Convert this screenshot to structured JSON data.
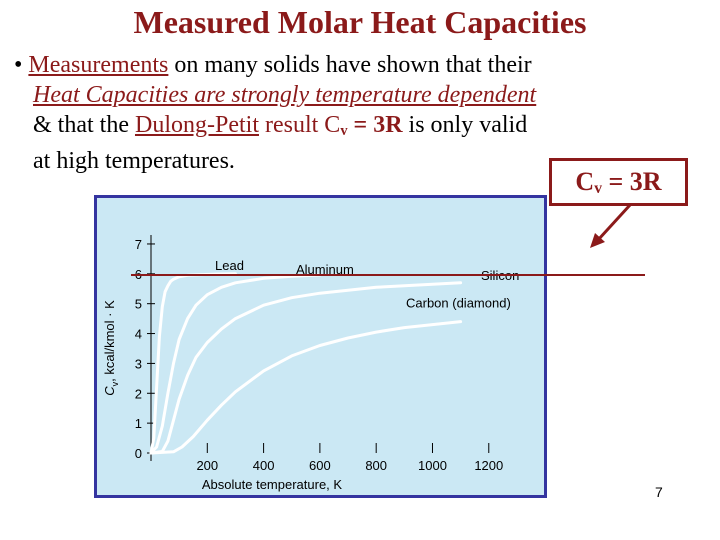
{
  "slide": {
    "title": "Measured Molar Heat Capacities",
    "bullet": "•",
    "l1_a": "Measurements",
    "l1_b": " on many solids have shown that their",
    "l2": "Heat Capacities are strongly temperature dependent",
    "l3_a": "& that the ",
    "l3_b": "Dulong-Petit",
    "l3_c": " result C",
    "l3_sub": "v",
    "l3_d": " = 3R",
    "l3_e": " is only valid",
    "l4": "at high temperatures.",
    "callout_c": "C",
    "callout_sub": "v",
    "callout_rest": " = 3R",
    "page_number": "7"
  },
  "colors": {
    "title": "#8b1a1a",
    "plot_bg": "#cbe8f4",
    "plot_border": "#3434a0",
    "curve": "#ffffff",
    "reference_line": "#8b1a1a"
  },
  "chart_data": {
    "type": "line",
    "xlabel": "Absolute temperature, K",
    "ylabel_c": "C",
    "ylabel_sub": "v",
    "ylabel_rest": ", kcal/kmol · K",
    "xticks": [
      "200",
      "400",
      "600",
      "800",
      "1000",
      "1200"
    ],
    "yticks": [
      "0",
      "1",
      "2",
      "3",
      "4",
      "5",
      "6",
      "7"
    ],
    "xlim": [
      0,
      1350
    ],
    "ylim": [
      0,
      7.3
    ],
    "reference_line": {
      "y": 5.96,
      "label": "Cv = 3R"
    },
    "series": [
      {
        "name": "Lead",
        "x": [
          0,
          10,
          20,
          30,
          40,
          50,
          60,
          70,
          80,
          100,
          130,
          170,
          230,
          300
        ],
        "y": [
          0,
          0.5,
          2.2,
          3.9,
          4.9,
          5.4,
          5.6,
          5.75,
          5.82,
          5.9,
          5.95,
          5.97,
          5.99,
          6.0
        ]
      },
      {
        "name": "Aluminum",
        "x": [
          0,
          20,
          40,
          60,
          80,
          100,
          130,
          160,
          200,
          250,
          300,
          400,
          500,
          600
        ],
        "y": [
          0,
          0.2,
          0.9,
          2.0,
          3.0,
          3.8,
          4.5,
          4.95,
          5.3,
          5.55,
          5.7,
          5.85,
          5.92,
          5.96
        ]
      },
      {
        "name": "Silicon",
        "x": [
          0,
          40,
          60,
          80,
          100,
          130,
          160,
          200,
          250,
          300,
          400,
          500,
          600,
          800,
          1000,
          1100
        ],
        "y": [
          0,
          0.05,
          0.4,
          1.1,
          1.8,
          2.6,
          3.2,
          3.7,
          4.15,
          4.5,
          4.95,
          5.2,
          5.35,
          5.55,
          5.65,
          5.7
        ]
      },
      {
        "name": "Carbon (diamond)",
        "x": [
          0,
          80,
          110,
          150,
          200,
          250,
          300,
          400,
          500,
          600,
          700,
          800,
          900,
          1000,
          1100
        ],
        "y": [
          0,
          0.04,
          0.2,
          0.55,
          1.1,
          1.6,
          2.05,
          2.75,
          3.25,
          3.6,
          3.85,
          4.05,
          4.2,
          4.3,
          4.4
        ]
      }
    ]
  }
}
